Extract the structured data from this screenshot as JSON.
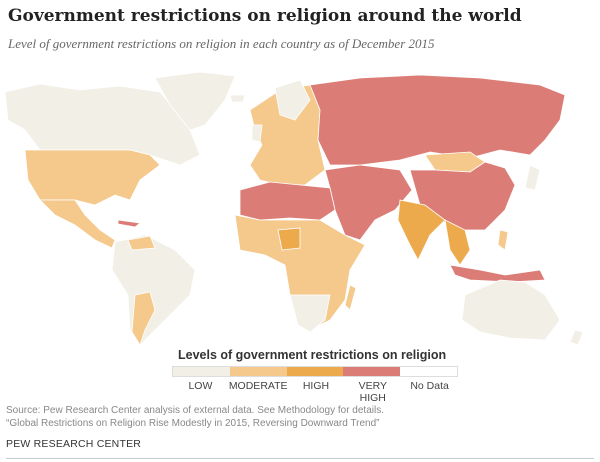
{
  "header": {
    "title": "Government restrictions on religion around the world",
    "subtitle": "Level of government restrictions on religion in each country as of December 2015"
  },
  "legend": {
    "title": "Levels of government restrictions on religion",
    "items": [
      {
        "label": "LOW",
        "color": "#f1efe6"
      },
      {
        "label": "MODERATE",
        "color": "#f5c88c"
      },
      {
        "label": "HIGH",
        "color": "#edaa4d"
      },
      {
        "label": "VERY HIGH",
        "color": "#dc7c76"
      },
      {
        "label": "No Data",
        "color": "#ffffff"
      }
    ]
  },
  "footer": {
    "source": "Source: Pew Research Center analysis of external data. See Methodology for details.",
    "report": "“Global Restrictions on Religion Rise Modestly in 2015, Reversing Downward Trend”",
    "brand": "PEW RESEARCH CENTER"
  }
}
